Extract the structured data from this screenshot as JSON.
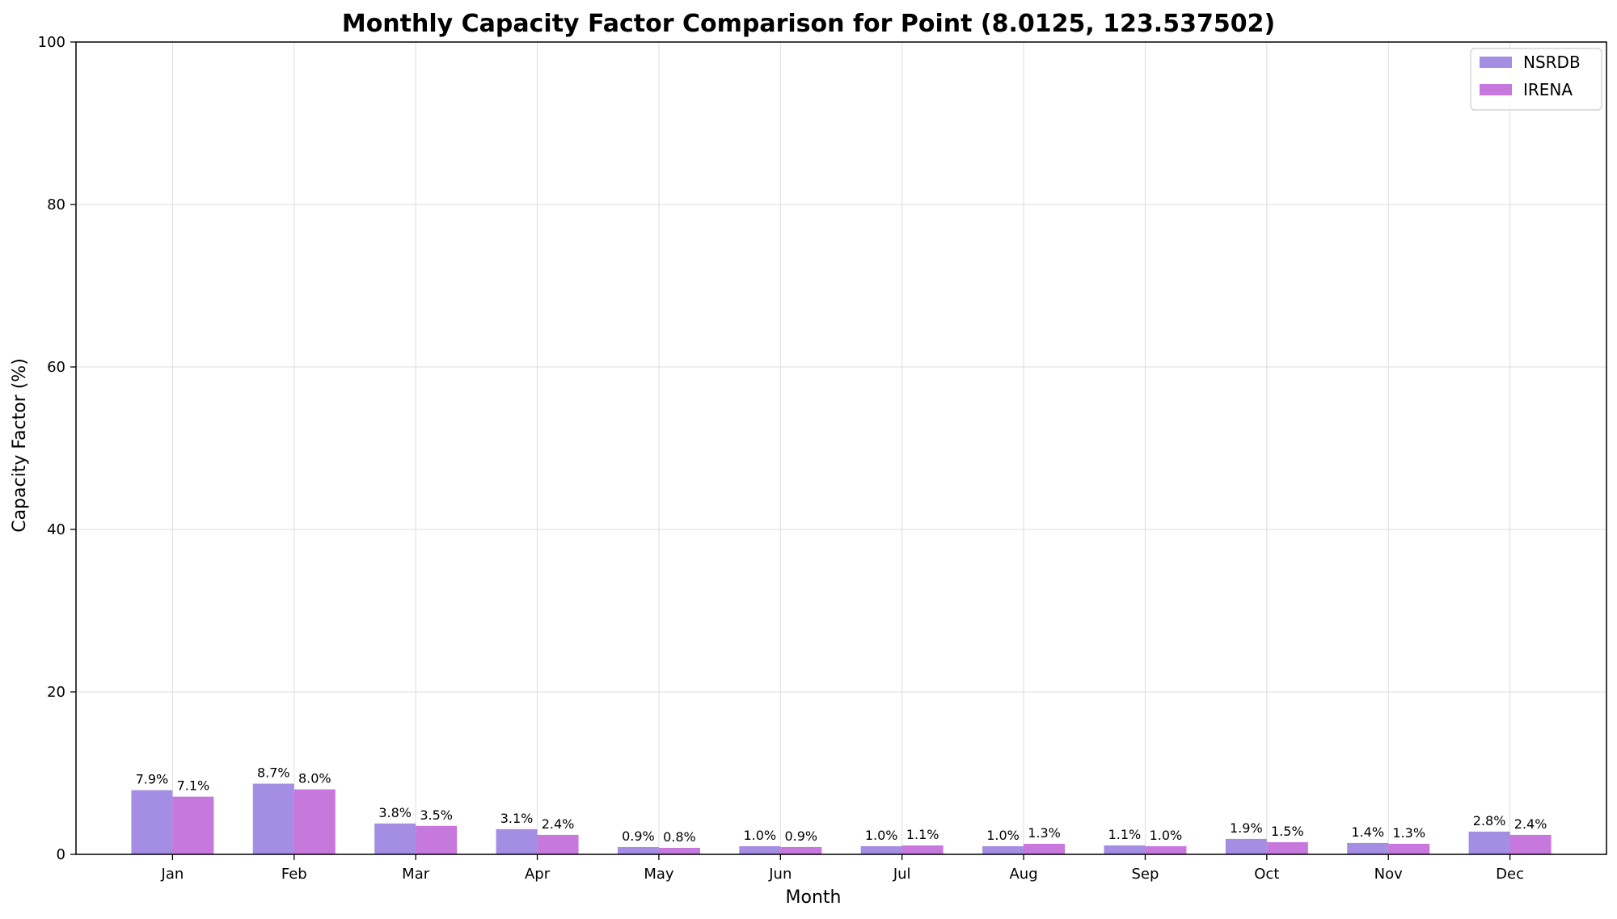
{
  "chart_data": {
    "type": "bar",
    "title": "Monthly Capacity Factor Comparison for Point (8.0125, 123.537502)",
    "xlabel": "Month",
    "ylabel": "Capacity Factor (%)",
    "ylim": [
      0,
      100
    ],
    "yticks": [
      0,
      20,
      40,
      60,
      80,
      100
    ],
    "grid": true,
    "legend_position": "top-right",
    "categories": [
      "Jan",
      "Feb",
      "Mar",
      "Apr",
      "May",
      "Jun",
      "Jul",
      "Aug",
      "Sep",
      "Oct",
      "Nov",
      "Dec"
    ],
    "series": [
      {
        "name": "NSRDB",
        "color": "#a48ee3",
        "values": [
          7.9,
          8.7,
          3.8,
          3.1,
          0.9,
          1.0,
          1.0,
          1.0,
          1.1,
          1.9,
          1.4,
          2.8
        ],
        "labels": [
          "7.9%",
          "8.7%",
          "3.8%",
          "3.1%",
          "0.9%",
          "1.0%",
          "1.0%",
          "1.0%",
          "1.1%",
          "1.9%",
          "1.4%",
          "2.8%"
        ]
      },
      {
        "name": "IRENA",
        "color": "#c678dd",
        "values": [
          7.1,
          8.0,
          3.5,
          2.4,
          0.8,
          0.9,
          1.1,
          1.3,
          1.0,
          1.5,
          1.3,
          2.4
        ],
        "labels": [
          "7.1%",
          "8.0%",
          "3.5%",
          "2.4%",
          "0.8%",
          "0.9%",
          "1.1%",
          "1.3%",
          "1.0%",
          "1.5%",
          "1.3%",
          "2.4%"
        ]
      }
    ]
  }
}
